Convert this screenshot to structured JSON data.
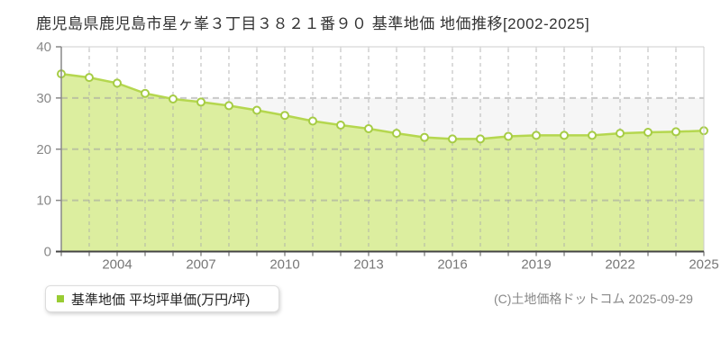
{
  "page": {
    "title": "鹿児島県鹿児島市星ヶ峯３丁目３８２１番９０ 基準地価 地価推移[2002-2025]"
  },
  "chart_data": {
    "type": "area",
    "title": "鹿児島県鹿児島市星ヶ峯３丁目３８２１番９０ 基準地価 地価推移[2002-2025]",
    "x": [
      2002,
      2003,
      2004,
      2005,
      2006,
      2007,
      2008,
      2009,
      2010,
      2011,
      2012,
      2013,
      2014,
      2015,
      2016,
      2017,
      2018,
      2019,
      2020,
      2021,
      2022,
      2023,
      2024,
      2025
    ],
    "series": [
      {
        "name": "基準地価 平均坪単価(万円/坪)",
        "values": [
          34.7,
          34.0,
          32.9,
          30.9,
          29.8,
          29.2,
          28.5,
          27.6,
          26.6,
          25.5,
          24.7,
          24.0,
          23.1,
          22.3,
          22.0,
          22.0,
          22.5,
          22.7,
          22.7,
          22.7,
          23.1,
          23.3,
          23.4,
          23.6
        ]
      }
    ],
    "xlabel": "",
    "ylabel": "",
    "ylim": [
      0,
      40
    ],
    "yticks": [
      0,
      10,
      20,
      30,
      40
    ],
    "xtick_years": [
      2004,
      2007,
      2010,
      2013,
      2016,
      2019,
      2022,
      2025
    ],
    "grid": true,
    "legend_position": "bottom-left",
    "colors": {
      "area_fill": "#dcee9f",
      "line": "#b5d74f",
      "marker_fill": "#ffffff",
      "marker_stroke": "#a6cc45",
      "grid_h": "rgba(160,160,160,0.55)",
      "grid_v": "rgba(170,170,170,0.6)",
      "band_alt": "#f6f6f6",
      "axis_top_right": "#cccccc",
      "axis_left": "#888888",
      "axis_bottom": "#444444",
      "tick_label": "#777777",
      "ytick_label": "#888888"
    }
  },
  "legend": {
    "label": "基準地価 平均坪単価(万円/坪)",
    "marker_color": "#99cc33"
  },
  "footer": {
    "copyright": "(C)土地価格ドットコム 2025-09-29"
  }
}
